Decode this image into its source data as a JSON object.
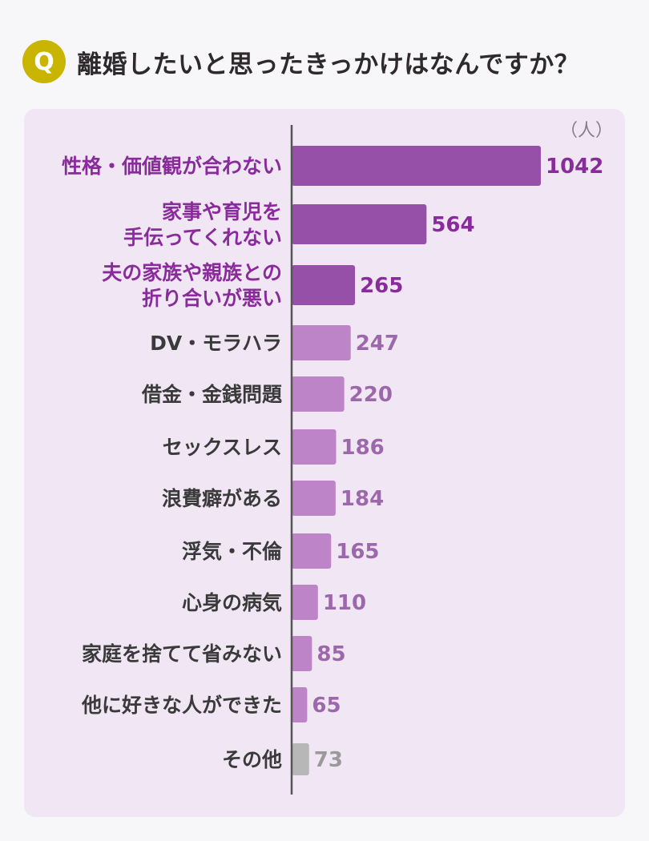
{
  "header": {
    "badge": "Q",
    "question": "離婚したいと思ったきっかけはなんですか？"
  },
  "chart_data": {
    "type": "bar",
    "orientation": "horizontal",
    "unit": "（人）",
    "categories": [
      [
        "性格・価値観が合わない"
      ],
      [
        "家事や育児を",
        "手伝ってくれない"
      ],
      [
        "夫の家族や親族との",
        "折り合いが悪い"
      ],
      [
        "DV・モラハラ"
      ],
      [
        "借金・金銭問題"
      ],
      [
        "セックスレス"
      ],
      [
        "浪費癖がある"
      ],
      [
        "浮気・不倫"
      ],
      [
        "心身の病気"
      ],
      [
        "家庭を捨てて省みない"
      ],
      [
        "他に好きな人ができた"
      ],
      [
        "その他"
      ]
    ],
    "values": [
      1042,
      564,
      265,
      247,
      220,
      186,
      184,
      165,
      110,
      85,
      65,
      73
    ],
    "highlight_top": 3,
    "colors": {
      "bar_top": "#9650a8",
      "bar_rest": "#bd85c8",
      "bar_other": "#b7b7b7",
      "label_top": "#8a2b9c",
      "label_rest": "#3a3a3a",
      "value_top": "#8a2b9c",
      "value_rest": "#9d68ab",
      "value_other": "#9a9a9a",
      "axis": "#555555",
      "unit": "#8a7a8e"
    }
  }
}
